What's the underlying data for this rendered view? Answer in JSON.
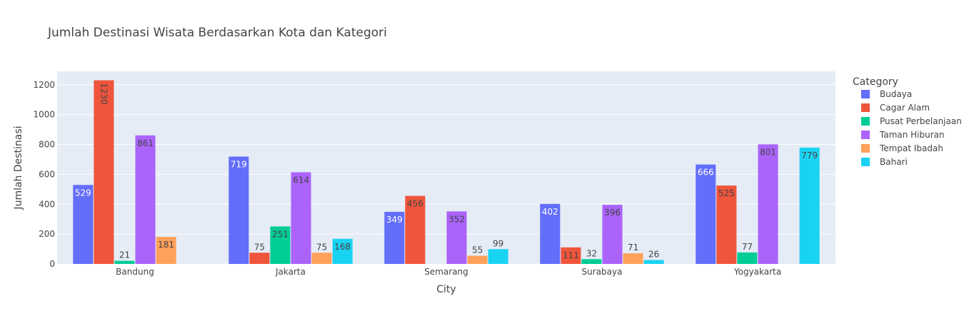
{
  "chart_data": {
    "type": "bar",
    "title": "Jumlah Destinasi Wisata Berdasarkan Kota dan Kategori",
    "xlabel": "City",
    "ylabel": "Jumlah Destinasi",
    "ylim": [
      0,
      1290
    ],
    "yticks": [
      0,
      200,
      400,
      600,
      800,
      1000,
      1200
    ],
    "categories": [
      "Bandung",
      "Jakarta",
      "Semarang",
      "Surabaya",
      "Yogyakarta"
    ],
    "legend_title": "Category",
    "legend_position": "right",
    "grid": true,
    "series": [
      {
        "name": "Budaya",
        "color": "#636efa",
        "values": [
          529,
          719,
          349,
          402,
          666
        ]
      },
      {
        "name": "Cagar Alam",
        "color": "#EF553B",
        "values": [
          1230,
          75,
          456,
          111,
          525
        ]
      },
      {
        "name": "Pusat Perbelanjaan",
        "color": "#00cc96",
        "values": [
          21,
          251,
          null,
          32,
          77
        ]
      },
      {
        "name": "Taman Hiburan",
        "color": "#ab63fa",
        "values": [
          861,
          614,
          352,
          396,
          801
        ]
      },
      {
        "name": "Tempat Ibadah",
        "color": "#FFA15A",
        "values": [
          181,
          75,
          55,
          71,
          null
        ]
      },
      {
        "name": "Bahari",
        "color": "#19d3f3",
        "values": [
          null,
          168,
          99,
          26,
          779
        ]
      }
    ]
  }
}
